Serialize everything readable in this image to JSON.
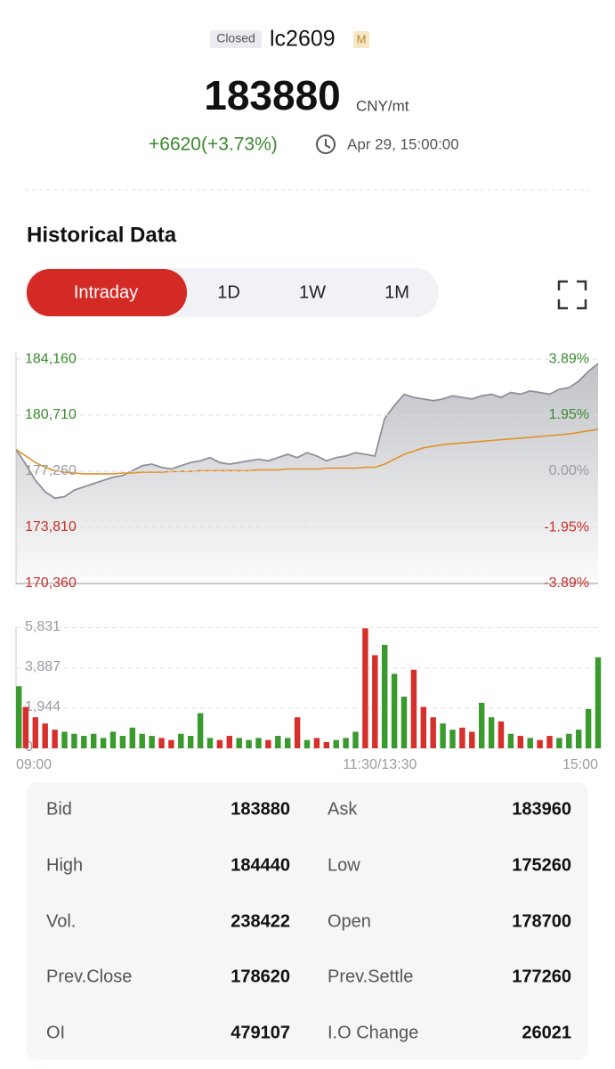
{
  "header": {
    "status": "Closed",
    "symbol": "lc2609",
    "badge": "M",
    "price": 183880,
    "unit": "CNY/mt",
    "change": "+6620(+3.73%)",
    "time": "Apr 29, 15:00:00"
  },
  "section_title": "Historical Data",
  "tabs": [
    {
      "label": "Intraday",
      "active": true
    },
    {
      "label": "1D"
    },
    {
      "label": "1W"
    },
    {
      "label": "1M"
    }
  ],
  "chart_data": [
    {
      "type": "line",
      "x": [
        0,
        4,
        8,
        12,
        16,
        20,
        24,
        28,
        32,
        36,
        40,
        44,
        48,
        52,
        56,
        60,
        64,
        68,
        72,
        76,
        80,
        84,
        88,
        92,
        96,
        100,
        104,
        108,
        112,
        116,
        120,
        124,
        128,
        132,
        136,
        140,
        144,
        148,
        152,
        156,
        160,
        164,
        168,
        172,
        176,
        180,
        184,
        188,
        192,
        196,
        200,
        204,
        208,
        212,
        216,
        220,
        224,
        228,
        232,
        236,
        240
      ],
      "xlim": [
        0,
        240
      ],
      "series": [
        {
          "color": "#8e9099",
          "area": true,
          "values": [
            178600,
            177700,
            176700,
            176000,
            175600,
            175700,
            176100,
            176300,
            176500,
            176700,
            176900,
            177000,
            177300,
            177600,
            177700,
            177500,
            177400,
            177600,
            177800,
            177900,
            178100,
            177800,
            177700,
            177800,
            177900,
            178000,
            177900,
            178100,
            178300,
            178100,
            178400,
            178200,
            177900,
            178100,
            178200,
            178400,
            178300,
            178200,
            180500,
            181300,
            182000,
            181800,
            181700,
            181600,
            181700,
            181900,
            181800,
            181700,
            181900,
            182000,
            181800,
            182100,
            182000,
            182200,
            182100,
            182000,
            182300,
            182400,
            182800,
            183400,
            183880
          ]
        },
        {
          "color": "#e0922a",
          "values": [
            178600,
            178200,
            177800,
            177500,
            177300,
            177200,
            177150,
            177100,
            177100,
            177100,
            177100,
            177150,
            177150,
            177200,
            177200,
            177200,
            177250,
            177250,
            177250,
            177300,
            177300,
            177300,
            177300,
            177300,
            177300,
            177350,
            177350,
            177350,
            177400,
            177400,
            177400,
            177400,
            177450,
            177450,
            177450,
            177450,
            177500,
            177500,
            177700,
            178000,
            178300,
            178500,
            178700,
            178800,
            178900,
            178950,
            179000,
            179050,
            179100,
            179150,
            179200,
            179250,
            179300,
            179350,
            179400,
            179450,
            179500,
            179550,
            179650,
            179750,
            179830
          ]
        }
      ],
      "ylim": [
        170250,
        184600
      ],
      "yticks": [
        {
          "value": 184160,
          "label": "184,160"
        },
        {
          "value": 180710,
          "label": "180,710"
        },
        {
          "value": 177260,
          "label": "177,260"
        },
        {
          "value": 173810,
          "label": "173,810"
        },
        {
          "value": 170360,
          "label": "170,360"
        }
      ],
      "y2lim": [
        -3.955,
        4.141
      ],
      "y2ticks": [
        {
          "value": 3.89,
          "label": "3.89%"
        },
        {
          "value": 1.95,
          "label": "1.95%"
        },
        {
          "value": 0,
          "label": "0.00%"
        },
        {
          "value": -1.95,
          "label": "-1.95%"
        },
        {
          "value": -3.89,
          "label": "-3.89%"
        }
      ],
      "up_color": "#3a8a2e",
      "down_color": "#c9302c",
      "flat_color": "#9a9ca3",
      "grid": true
    },
    {
      "type": "bar",
      "x": [
        0,
        4,
        8,
        12,
        16,
        20,
        24,
        28,
        32,
        36,
        40,
        44,
        48,
        52,
        56,
        60,
        64,
        68,
        72,
        76,
        80,
        84,
        88,
        92,
        96,
        100,
        104,
        108,
        112,
        116,
        120,
        124,
        128,
        132,
        136,
        140,
        144,
        148,
        152,
        156,
        160,
        164,
        168,
        172,
        176,
        180,
        184,
        188,
        192,
        196,
        200,
        204,
        208,
        212,
        216,
        220,
        224,
        228,
        232,
        236,
        240
      ],
      "xlim": [
        0,
        240
      ],
      "xticks": [
        {
          "value": 0,
          "label": "09:00"
        },
        {
          "value": 150,
          "label": "11:30/13:30"
        },
        {
          "value": 240,
          "label": "15:00"
        }
      ],
      "values": [
        3000,
        2000,
        1500,
        1200,
        900,
        800,
        700,
        600,
        700,
        500,
        800,
        600,
        1000,
        700,
        600,
        500,
        400,
        700,
        600,
        1700,
        500,
        400,
        600,
        500,
        400,
        500,
        400,
        600,
        500,
        1500,
        400,
        500,
        300,
        400,
        500,
        800,
        5800,
        4500,
        5000,
        3600,
        2500,
        3800,
        2000,
        1500,
        1200,
        900,
        1000,
        800,
        2200,
        1500,
        1300,
        700,
        600,
        500,
        400,
        600,
        500,
        700,
        900,
        1900,
        4400
      ],
      "ylim": [
        0,
        5900
      ],
      "yticks": [
        0,
        {
          "value": 1944,
          "label": "1,944"
        },
        {
          "value": 3887,
          "label": "3,887"
        },
        {
          "value": 5831,
          "label": "5,831"
        }
      ],
      "up_color": "#3a9a2e",
      "down_color": "#d6302c",
      "grid": true
    }
  ],
  "stats": [
    [
      {
        "label": "Bid",
        "value": 183880
      },
      {
        "label": "Ask",
        "value": 183960
      }
    ],
    [
      {
        "label": "High",
        "value": 184440
      },
      {
        "label": "Low",
        "value": 175260
      }
    ],
    [
      {
        "label": "Vol.",
        "value": 238422
      },
      {
        "label": "Open",
        "value": 178700
      }
    ],
    [
      {
        "label": "Prev.Close",
        "value": 178620
      },
      {
        "label": "Prev.Settle",
        "value": 177260
      }
    ],
    [
      {
        "label": "OI",
        "value": 479107
      },
      {
        "label": "I.O Change",
        "value": 26021
      }
    ]
  ]
}
